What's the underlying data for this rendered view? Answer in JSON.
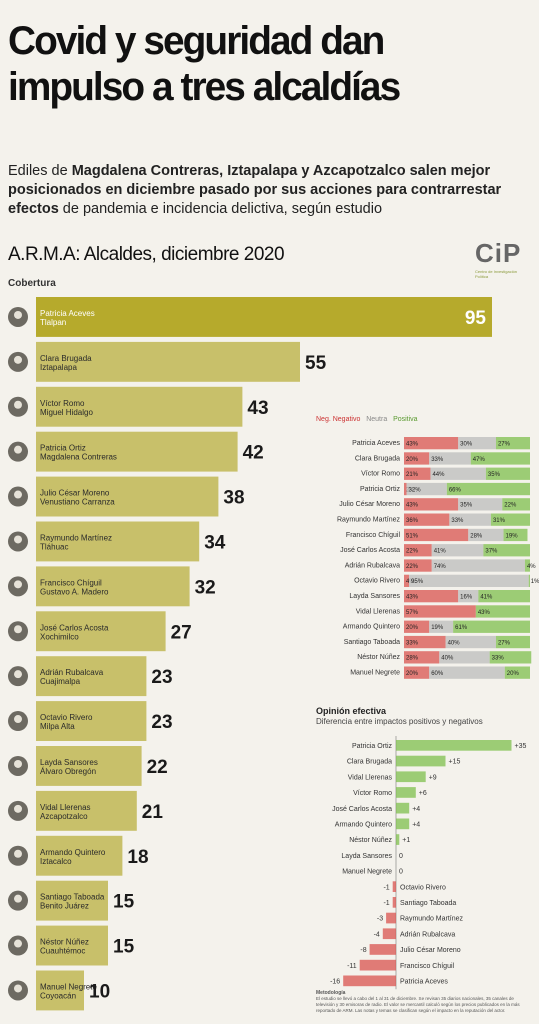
{
  "headline": "Covid y seguridad dan impulso a tres alcaldías",
  "subtitle": {
    "p1": "Ediles de ",
    "b1": "Magdalena Contreras, Iztapalapa y Azcapotzalco salen mejor posicionados en diciembre pasado por sus acciones para contrarrestar efectos",
    "p2": " de pandemia e incidencia delictiva, según estudio"
  },
  "chart_title": "A.R.M.A: Alcaldes, diciembre 2020",
  "logo": {
    "text": "CiP",
    "sub": "Centro de Investigación Política"
  },
  "coverage_label": "Cobertura",
  "colors": {
    "bar": "#c8c06a",
    "bar_top": "#b6aa2c",
    "negative": "#d9534f",
    "neutral": "#bcbcbc",
    "positive": "#7fbf4d"
  },
  "legend": {
    "negative": "Neg. Negativo",
    "neutral": "Neutra",
    "positive": "Positiva"
  },
  "opinion_title": "Opinión efectiva",
  "opinion_subtitle": "Diferencia entre impactos positivos y negativos",
  "methodology_title": "Metodología",
  "methodology_text": "El estudio se llevó a cabo del 1 al 31 de diciembre. Se revisan 35 diarios nacionales, 35 canales de televisión y 30 emisoras de radio. El valor se mercantil calculó según los precios publicados en la más reportado de ARM. Las notas y temas se clasifican según el impacto en la reputación del actor.",
  "chart_data": [
    {
      "type": "bar",
      "title": "Cobertura",
      "people": [
        {
          "name": "Patricia Aceves",
          "borough": "Tlalpan",
          "value": 95
        },
        {
          "name": "Clara Brugada",
          "borough": "Iztapalapa",
          "value": 55
        },
        {
          "name": "Víctor Romo",
          "borough": "Miguel Hidalgo",
          "value": 43
        },
        {
          "name": "Patricia Ortiz",
          "borough": "Magdalena Contreras",
          "value": 42
        },
        {
          "name": "Julio César Moreno",
          "borough": "Venustiano Carranza",
          "value": 38
        },
        {
          "name": "Raymundo Martínez",
          "borough": "Tláhuac",
          "value": 34
        },
        {
          "name": "Francisco Chíguil",
          "borough": "Gustavo A. Madero",
          "value": 32
        },
        {
          "name": "José Carlos Acosta",
          "borough": "Xochimilco",
          "value": 27
        },
        {
          "name": "Adrián Rubalcava",
          "borough": "Cuajimalpa",
          "value": 23
        },
        {
          "name": "Octavio Rivero",
          "borough": "Milpa Alta",
          "value": 23
        },
        {
          "name": "Layda Sansores",
          "borough": "Álvaro Obregón",
          "value": 22
        },
        {
          "name": "Vidal Llerenas",
          "borough": "Azcapotzalco",
          "value": 21
        },
        {
          "name": "Armando Quintero",
          "borough": "Iztacalco",
          "value": 18
        },
        {
          "name": "Santiago Taboada",
          "borough": "Benito Juárez",
          "value": 15
        },
        {
          "name": "Néstor Núñez",
          "borough": "Cuauhtémoc",
          "value": 15
        },
        {
          "name": "Manuel Negrete",
          "borough": "Coyoacán",
          "value": 10
        }
      ]
    },
    {
      "type": "bar",
      "stacked": true,
      "series_names": [
        "Negativo",
        "Neutra",
        "Positiva"
      ],
      "rows": [
        {
          "name": "Patricia Aceves",
          "neg": 43,
          "neu": 30,
          "pos": 27
        },
        {
          "name": "Clara Brugada",
          "neg": 20,
          "neu": 33,
          "pos": 47
        },
        {
          "name": "Víctor Romo",
          "neg": 21,
          "neu": 44,
          "pos": 35
        },
        {
          "name": "Patricia Ortiz",
          "neg": 2,
          "neu": 32,
          "pos": 66
        },
        {
          "name": "Julio César Moreno",
          "neg": 43,
          "neu": 35,
          "pos": 22
        },
        {
          "name": "Raymundo Martínez",
          "neg": 36,
          "neu": 33,
          "pos": 31
        },
        {
          "name": "Francisco Chíguil",
          "neg": 51,
          "neu": 28,
          "pos": 19
        },
        {
          "name": "José Carlos Acosta",
          "neg": 22,
          "neu": 41,
          "pos": 37
        },
        {
          "name": "Adrián Rubalcava",
          "neg": 22,
          "neu": 74,
          "pos": 4
        },
        {
          "name": "Octavio Rivero",
          "neg": 4,
          "neu": 95,
          "pos": 1
        },
        {
          "name": "Layda Sansores",
          "neg": 43,
          "neu": 16,
          "pos": 41
        },
        {
          "name": "Vidal Llerenas",
          "neg": 57,
          "neu": 0,
          "pos": 43
        },
        {
          "name": "Armando Quintero",
          "neg": 20,
          "neu": 19,
          "pos": 61
        },
        {
          "name": "Santiago Taboada",
          "neg": 33,
          "neu": 40,
          "pos": 27
        },
        {
          "name": "Néstor Núñez",
          "neg": 28,
          "neu": 40,
          "pos": 33
        },
        {
          "name": "Manuel Negrete",
          "neg": 20,
          "neu": 60,
          "pos": 20
        }
      ]
    },
    {
      "type": "bar",
      "title": "Opinión efectiva",
      "rows": [
        {
          "name": "Patricia Ortiz",
          "value": 35,
          "label": "+35"
        },
        {
          "name": "Clara Brugada",
          "value": 15,
          "label": "+15"
        },
        {
          "name": "Vidal Llerenas",
          "value": 9,
          "label": "+9"
        },
        {
          "name": "Víctor Romo",
          "value": 6,
          "label": "+6"
        },
        {
          "name": "José Carlos Acosta",
          "value": 4,
          "label": "+4"
        },
        {
          "name": "Armando Quintero",
          "value": 4,
          "label": "+4"
        },
        {
          "name": "Néstor Núñez",
          "value": 1,
          "label": "+1"
        },
        {
          "name": "Layda Sansores",
          "value": 0,
          "label": "0"
        },
        {
          "name": "Manuel Negrete",
          "value": 0,
          "label": "0"
        },
        {
          "name": "Octavio Rivero",
          "value": -1,
          "label": "-1"
        },
        {
          "name": "Santiago Taboada",
          "value": -1,
          "label": "-1"
        },
        {
          "name": "Raymundo Martínez",
          "value": -3,
          "label": "-3"
        },
        {
          "name": "Adrián Rubalcava",
          "value": -4,
          "label": "-4"
        },
        {
          "name": "Julio César Moreno",
          "value": -8,
          "label": "-8"
        },
        {
          "name": "Francisco Chíguil",
          "value": -11,
          "label": "-11"
        },
        {
          "name": "Patricia Aceves",
          "value": -16,
          "label": "-16"
        }
      ]
    }
  ]
}
